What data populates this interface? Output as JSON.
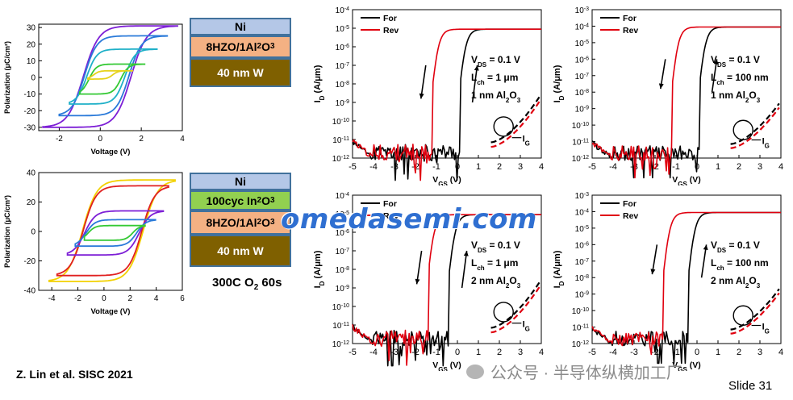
{
  "stacks": [
    {
      "layers": [
        {
          "label": "Ni",
          "color": "#b4c7e7"
        },
        {
          "label": "8HZO/1Al",
          "sub": "2",
          "tail": "O",
          "sub2": "3",
          "color": "#f4b183"
        },
        {
          "label": "40 nm W",
          "color": "#7f6000",
          "text_color": "#ffffff"
        }
      ]
    },
    {
      "layers": [
        {
          "label": "Ni",
          "color": "#b4c7e7"
        },
        {
          "label": "100cyc In",
          "sub": "2",
          "tail": "O",
          "sub2": "3",
          "color": "#92d050"
        },
        {
          "label": "8HZO/1Al",
          "sub": "2",
          "tail": "O",
          "sub2": "3",
          "color": "#f4b183"
        },
        {
          "label": "40 nm W",
          "color": "#7f6000",
          "text_color": "#ffffff"
        }
      ],
      "anneal": {
        "pre": "300C O",
        "sub": "2",
        "post": " 60s"
      }
    }
  ],
  "citation": "Z. Lin et al. SISC 2021",
  "slide_number": "Slide 31",
  "watermark": "omedasemi.com",
  "wechat": "公众号 · 半导体纵横加工厂",
  "colors": {
    "forward": "#000000",
    "reverse": "#e0000f",
    "box_border": "#41719c"
  },
  "chart_data": [
    {
      "type": "line",
      "id": "pv-top",
      "xlabel": "Voltage (V)",
      "ylabel": "Polarization (μC/cm²)",
      "xlim": [
        -3,
        4
      ],
      "ylim": [
        -32,
        32
      ],
      "xticks": [
        -2,
        0,
        2,
        4
      ],
      "yticks": [
        -30,
        -20,
        -10,
        0,
        10,
        20,
        30
      ],
      "loops": [
        {
          "color": "#7d1fd6",
          "vmax": 3.8,
          "vmin": -2.8,
          "pmax": 31,
          "pmin": -30,
          "vc": 1.5
        },
        {
          "color": "#2a7ad9",
          "vmax": 3.3,
          "vmin": -2.0,
          "pmax": 25,
          "pmin": -23,
          "vc": 1.4
        },
        {
          "color": "#1fb0c8",
          "vmax": 2.8,
          "vmin": -1.5,
          "pmax": 17,
          "pmin": -16,
          "vc": 1.2
        },
        {
          "color": "#34c934",
          "vmax": 2.2,
          "vmin": -1.0,
          "pmax": 8,
          "pmin": -10,
          "vc": 1.0
        },
        {
          "color": "#e6d21a",
          "vmax": 1.6,
          "vmin": -0.6,
          "pmax": 4,
          "pmin": -1,
          "vc": 0.6
        }
      ]
    },
    {
      "type": "line",
      "id": "pv-bottom",
      "xlabel": "Voltage (V)",
      "ylabel": "Polarization (μC/cm²)",
      "xlim": [
        -5,
        6
      ],
      "ylim": [
        -40,
        40
      ],
      "xticks": [
        -4,
        -2,
        0,
        2,
        4,
        6
      ],
      "yticks": [
        -40,
        -20,
        0,
        20,
        40
      ],
      "loops": [
        {
          "color": "#f2d100",
          "vmax": 5.5,
          "vmin": -4.2,
          "pmax": 35,
          "pmin": -34,
          "vc": 3.0
        },
        {
          "color": "#e02020",
          "vmax": 5.0,
          "vmin": -3.6,
          "pmax": 31,
          "pmin": -30,
          "vc": 2.9
        },
        {
          "color": "#7d1fd6",
          "vmax": 4.6,
          "vmin": -2.8,
          "pmax": 14,
          "pmin": -16,
          "vc": 2.7
        },
        {
          "color": "#2a7ad9",
          "vmax": 4.0,
          "vmin": -2.2,
          "pmax": 8,
          "pmin": -10,
          "vc": 2.5
        },
        {
          "color": "#34c934",
          "vmax": 3.2,
          "vmin": -1.5,
          "pmax": 4,
          "pmin": -6,
          "vc": 2.2
        }
      ]
    },
    {
      "type": "line",
      "id": "id-vg-1",
      "xlabel": "VGS (V)",
      "ylabel": "ID (A/μm)",
      "xlim": [
        -5,
        4
      ],
      "ylog": [
        -12,
        -4
      ],
      "xticks": [
        -5,
        -4,
        -3,
        -2,
        -1,
        0,
        1,
        2,
        3,
        4
      ],
      "legend": [
        "For",
        "Rev"
      ],
      "vds": "VDS = 0.1 V",
      "lch": "Lch = 1 μm",
      "oxide": "1 nm Al2O3",
      "forward_vth": 0.1,
      "reverse_vth": -1.2,
      "ion": -5,
      "ig": "IG"
    },
    {
      "type": "line",
      "id": "id-vg-2",
      "xlabel": "VGS (V)",
      "ylabel": "ID (A/μm)",
      "xlim": [
        -5,
        4
      ],
      "ylog": [
        -12,
        -3
      ],
      "xticks": [
        -5,
        -4,
        -3,
        -2,
        -1,
        0,
        1,
        2,
        3,
        4
      ],
      "legend": [
        "For",
        "Rev"
      ],
      "vds": "VDS = 0.1 V",
      "lch": "Lch = 100 nm",
      "oxide": "1 nm Al2O3",
      "forward_vth": 0.1,
      "reverse_vth": -1.2,
      "ion": -4,
      "ig": "IG"
    },
    {
      "type": "line",
      "id": "id-vg-3",
      "xlabel": "VGS (V)",
      "ylabel": "ID (A/μm)",
      "xlim": [
        -5,
        4
      ],
      "ylog": [
        -12,
        -4
      ],
      "xticks": [
        -5,
        -4,
        -3,
        -2,
        -1,
        0,
        1,
        2,
        3,
        4
      ],
      "legend": [
        "For",
        "Rev"
      ],
      "vds": "VDS = 0.1 V",
      "lch": "Lch = 1 μm",
      "oxide": "2 nm Al2O3",
      "forward_vth": -0.4,
      "reverse_vth": -1.4,
      "ion": -5,
      "ig": "IG"
    },
    {
      "type": "line",
      "id": "id-vg-4",
      "xlabel": "VGS (V)",
      "ylabel": "ID (A/μm)",
      "xlim": [
        -5,
        4
      ],
      "ylog": [
        -12,
        -3
      ],
      "xticks": [
        -5,
        -4,
        -3,
        -2,
        -1,
        0,
        1,
        2,
        3,
        4
      ],
      "legend": [
        "For",
        "Rev"
      ],
      "vds": "VDS = 0.1 V",
      "lch": "Lch = 100 nm",
      "oxide": "2 nm Al2O3",
      "forward_vth": -0.4,
      "reverse_vth": -1.6,
      "ion": -4,
      "ig": "IG"
    }
  ]
}
